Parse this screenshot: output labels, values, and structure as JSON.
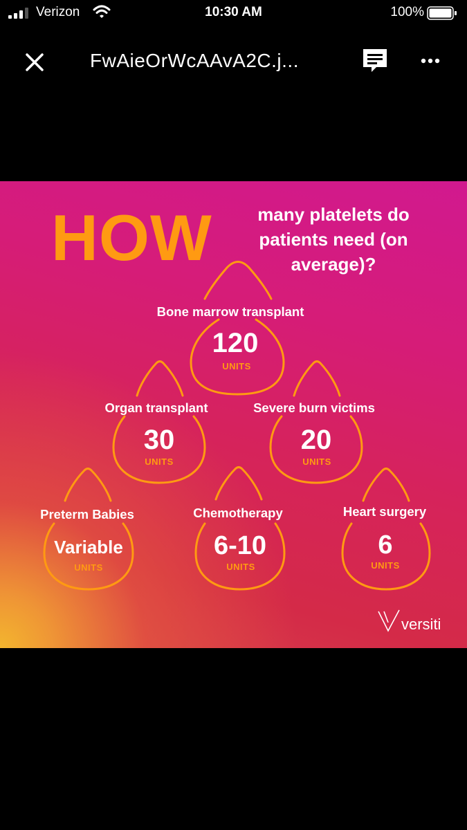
{
  "status_bar": {
    "carrier": "Verizon",
    "time": "10:30 AM",
    "battery": "100%",
    "icons": [
      "signal-icon",
      "wifi-icon",
      "battery-icon"
    ]
  },
  "header": {
    "title": "FwAieOrWcAAvA2C.j...",
    "icons": [
      "close-icon",
      "comment-icon",
      "more-icon"
    ]
  },
  "infographic": {
    "headline": "HOW",
    "question": "many platelets do patients need (on average)?",
    "units_label": "UNITS",
    "items": [
      {
        "label": "Bone marrow transplant",
        "value": "120"
      },
      {
        "label": "Organ transplant",
        "value": "30"
      },
      {
        "label": "Severe burn victims",
        "value": "20"
      },
      {
        "label": "Preterm Babies",
        "value": "Variable"
      },
      {
        "label": "Chemotherapy",
        "value": "6-10"
      },
      {
        "label": "Heart surgery",
        "value": "6"
      }
    ],
    "brand": "versiti",
    "colors": {
      "accent_orange": "#ff9a12",
      "background_magenta": "#d1198f",
      "background_red": "#d42a48"
    }
  }
}
